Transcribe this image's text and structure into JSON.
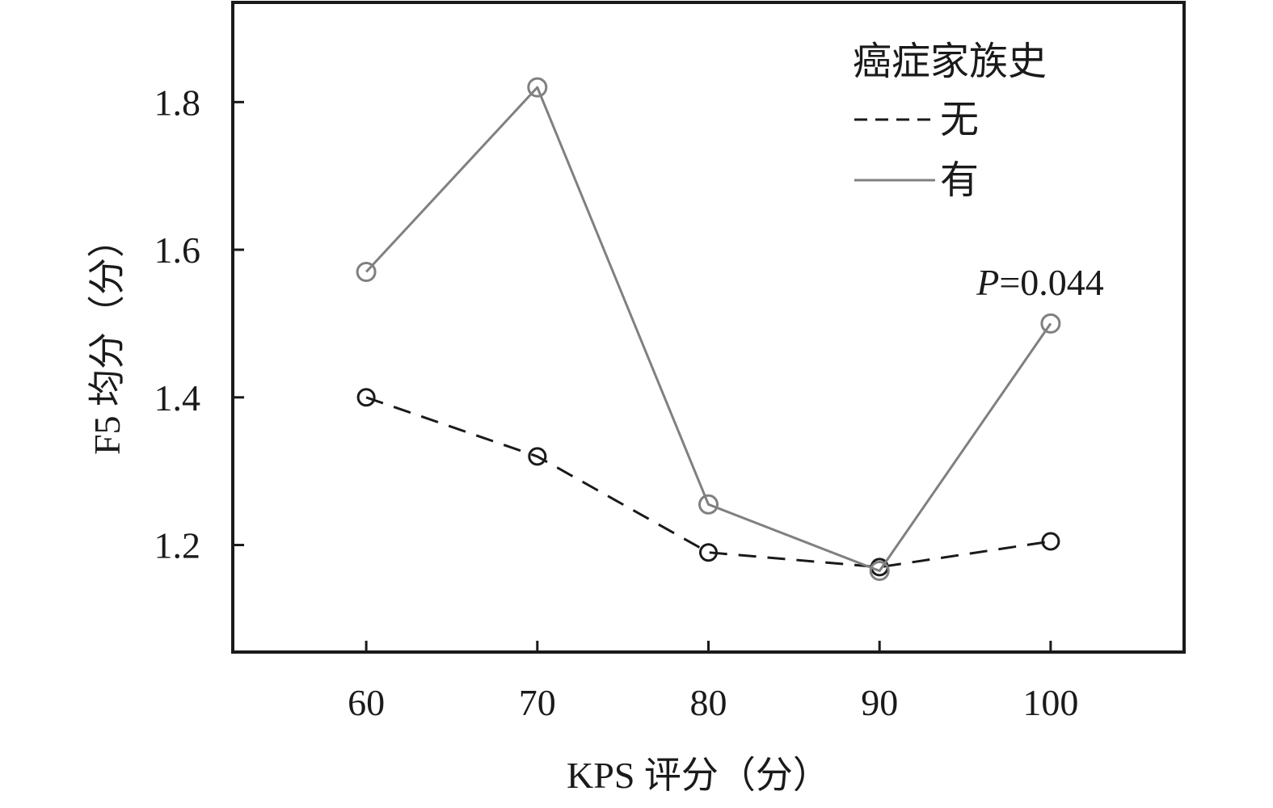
{
  "chart_data": {
    "type": "line",
    "title": "",
    "xlabel": "KPS 评分（分）",
    "ylabel": "F5 均分（分）",
    "categories": [
      "60",
      "70",
      "80",
      "90",
      "100"
    ],
    "x": [
      60,
      70,
      80,
      90,
      100
    ],
    "xlim": [
      52.2,
      107.8
    ],
    "ylim": [
      1.055,
      1.935
    ],
    "yticks": [
      1.2,
      1.4,
      1.6,
      1.8
    ],
    "ytick_labels": [
      "1.2",
      "1.4",
      "1.6",
      "1.8"
    ],
    "grid": false,
    "legend": {
      "title": "癌症家族史",
      "position": "top-right"
    },
    "series": [
      {
        "name": "无",
        "values": [
          1.4,
          1.32,
          1.19,
          1.17,
          1.205
        ],
        "color": "#1a1a1a",
        "line_style": "dashed",
        "marker": "open-circle"
      },
      {
        "name": "有",
        "values": [
          1.57,
          1.82,
          1.255,
          1.165,
          1.5
        ],
        "color": "#808080",
        "line_style": "solid",
        "marker": "open-circle"
      }
    ],
    "annotations": [
      {
        "italic_part": "P",
        "rest": "=0.044",
        "x": 100,
        "y": 1.565
      }
    ]
  }
}
